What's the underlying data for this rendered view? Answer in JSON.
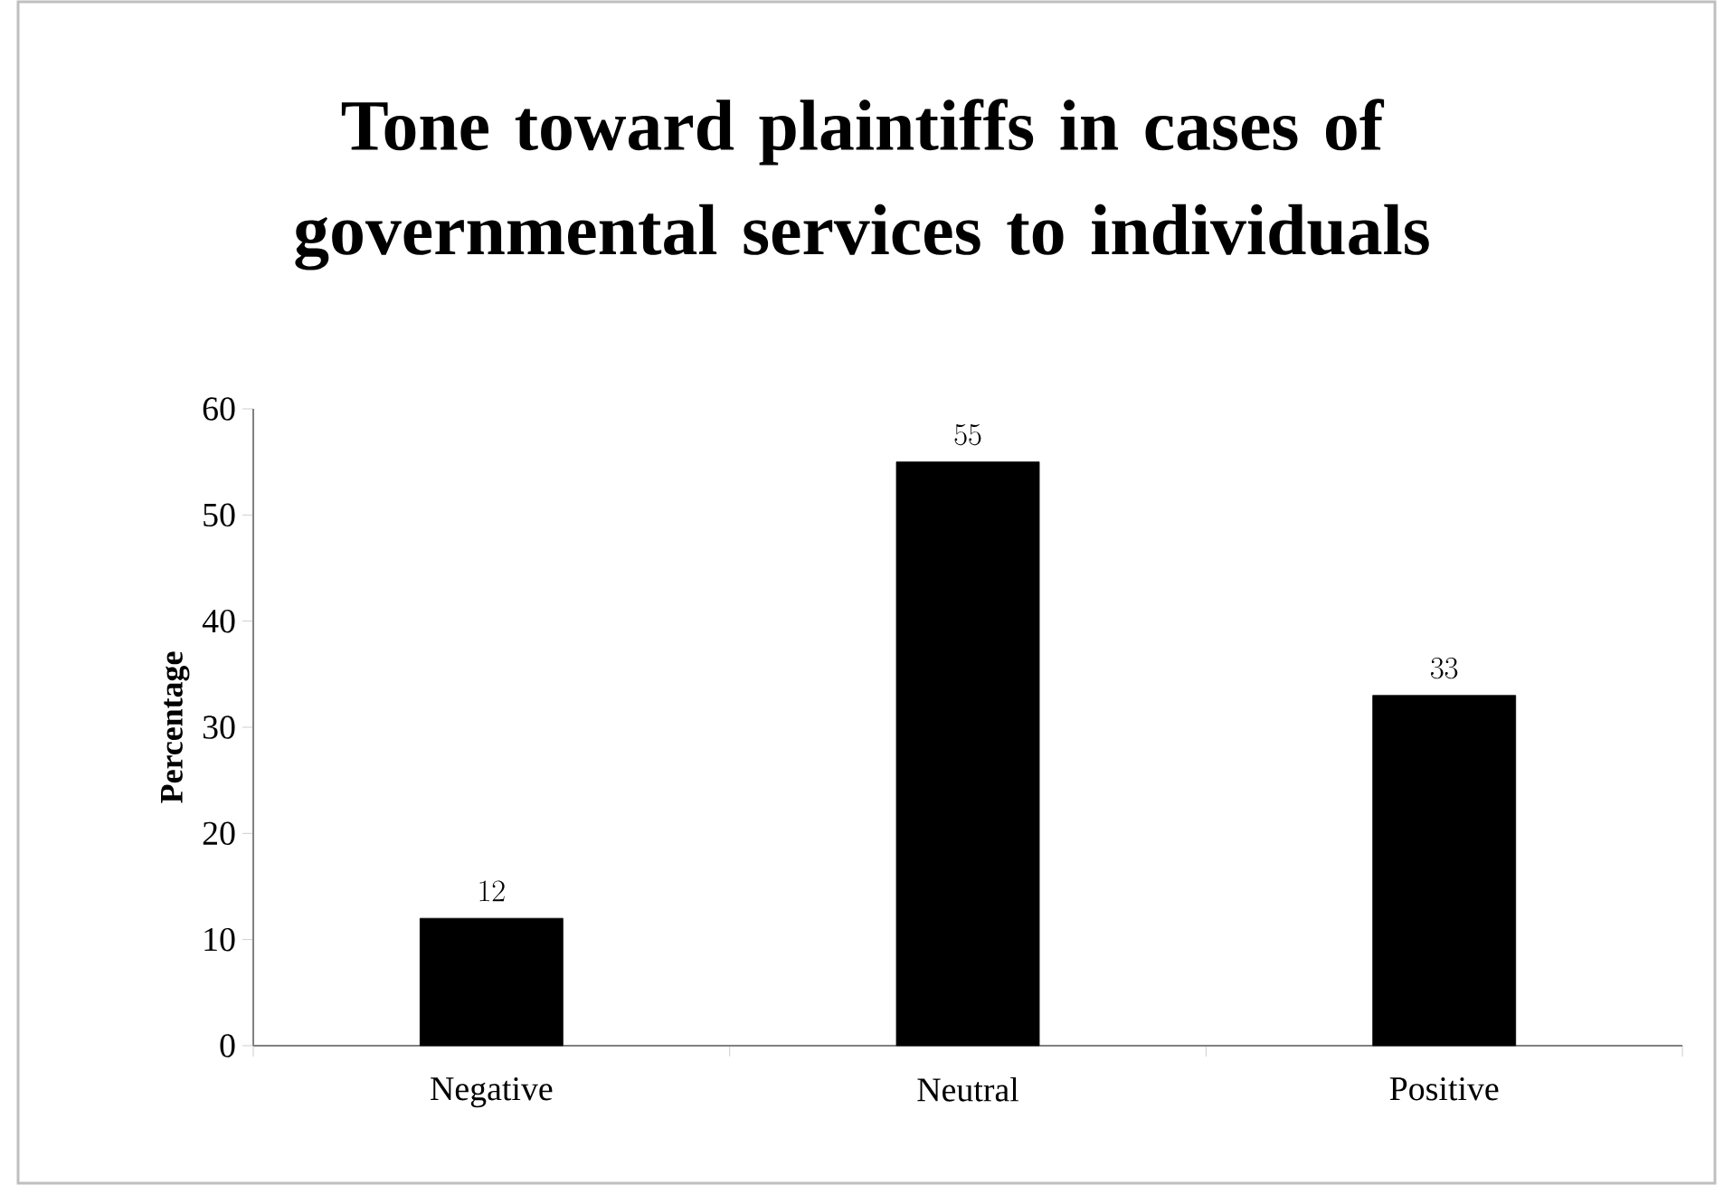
{
  "chart_data": {
    "type": "bar",
    "title": "Tone toward plaintiffs in cases of governmental services to individuals",
    "ylabel": "Percentage",
    "categories": [
      "Negative",
      "Neutral",
      "Positive"
    ],
    "values": [
      12,
      55,
      33
    ],
    "color": "#000000",
    "ylim": [
      0,
      60
    ],
    "yticks": [
      0,
      10,
      20,
      30,
      40,
      50,
      60
    ],
    "data_labels": true
  }
}
